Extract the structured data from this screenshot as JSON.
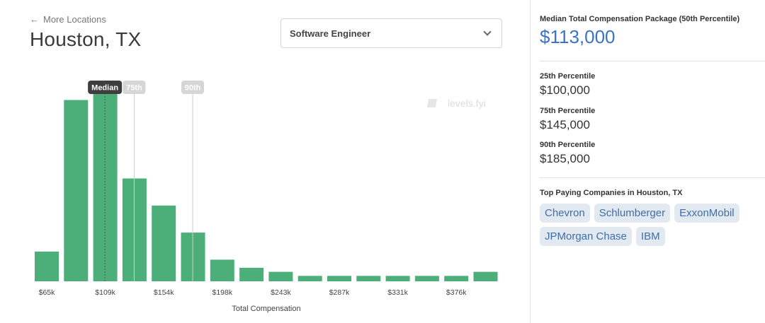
{
  "header": {
    "back_link_label": "More Locations",
    "title": "Houston, TX"
  },
  "job_select": {
    "value": "Software Engineer"
  },
  "watermark": "levels.fyi",
  "chart_data": {
    "type": "bar",
    "xlabel": "Total Compensation",
    "x_tick_labels": [
      "$65k",
      "$109k",
      "$154k",
      "$198k",
      "$243k",
      "$287k",
      "$331k",
      "$376k"
    ],
    "values": [
      11,
      67,
      70,
      38,
      28,
      18,
      8,
      5,
      3.5,
      2,
      2,
      2,
      2,
      2,
      2,
      3.5
    ],
    "ylim": [
      0,
      70
    ],
    "markers": [
      {
        "label": "Median",
        "position_bin": 2.4,
        "style": "dark"
      },
      {
        "label": "75th",
        "position_bin": 3.4,
        "style": "light"
      },
      {
        "label": "90th",
        "position_bin": 5.4,
        "style": "light"
      }
    ],
    "bar_color": "#4caf7a"
  },
  "summary": {
    "median_label": "Median Total Compensation Package (50th Percentile)",
    "median_value": "$113,000",
    "percentiles": [
      {
        "label": "25th Percentile",
        "value": "$100,000"
      },
      {
        "label": "75th Percentile",
        "value": "$145,000"
      },
      {
        "label": "90th Percentile",
        "value": "$185,000"
      }
    ],
    "top_companies_label": "Top Paying Companies in Houston, TX",
    "companies": [
      "Chevron",
      "Schlumberger",
      "ExxonMobil",
      "JPMorgan Chase",
      "IBM"
    ]
  },
  "colors": {
    "accent": "#3a74c6",
    "chip_bg": "#e3e9f1",
    "chip_text": "#3d6fa8"
  }
}
